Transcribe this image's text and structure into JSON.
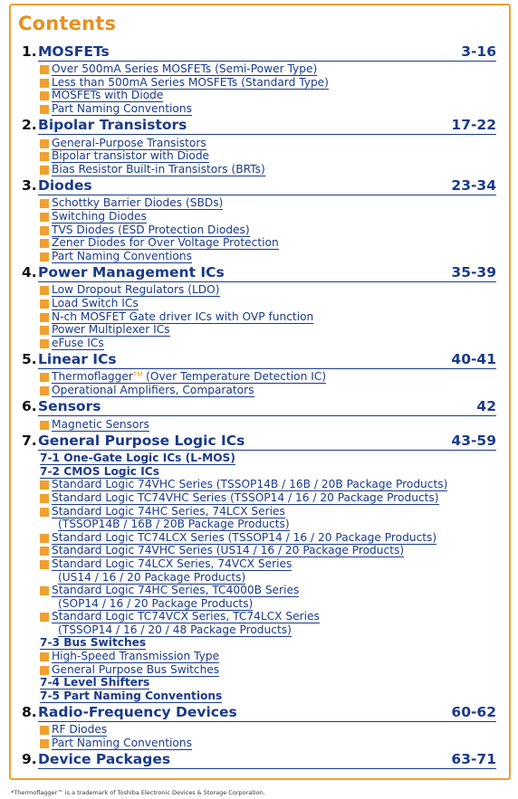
{
  "title": "Contents",
  "sections": [
    {
      "num": "1.",
      "name": "MOSFETs",
      "pages": "3-16",
      "items": [
        {
          "text": "Over 500mA Series MOSFETs (Semi-Power Type)",
          "bullet": true
        },
        {
          "text": "Less than 500mA Series MOSFETs (Standard Type)",
          "bullet": true
        },
        {
          "text": "MOSFETs with Diode",
          "bullet": true
        },
        {
          "text": "Part Naming Conventions",
          "bullet": true
        }
      ]
    },
    {
      "num": "2.",
      "name": "Bipolar Transistors",
      "pages": "17-22",
      "items": [
        {
          "text": "General-Purpose Transistors",
          "bullet": true
        },
        {
          "text": "Bipolar transistor with Diode",
          "bullet": true
        },
        {
          "text": "Bias Resistor Built-in Transistors (BRTs)",
          "bullet": true
        }
      ]
    },
    {
      "num": "3.",
      "name": "Diodes",
      "pages": "23-34",
      "items": [
        {
          "text": "Schottky Barrier Diodes (SBDs)",
          "bullet": true
        },
        {
          "text": "Switching Diodes",
          "bullet": true
        },
        {
          "text": "TVS Diodes (ESD Protection Diodes)",
          "bullet": true
        },
        {
          "text": "Zener Diodes for Over Voltage Protection",
          "bullet": true
        },
        {
          "text": "Part Naming Conventions",
          "bullet": true
        }
      ]
    },
    {
      "num": "4.",
      "name": "Power Management ICs",
      "pages": "35-39",
      "items": [
        {
          "text": "Low Dropout Regulators (LDO)",
          "bullet": true
        },
        {
          "text": "Load Switch ICs",
          "bullet": true
        },
        {
          "text": "N-ch MOSFET Gate driver ICs with OVP function",
          "bullet": true
        },
        {
          "text": "Power Multiplexer ICs",
          "bullet": true
        },
        {
          "text": "eFuse ICs",
          "bullet": true
        }
      ]
    },
    {
      "num": "5.",
      "name": "Linear ICs",
      "pages": "40-41",
      "items": [
        {
          "text": "Thermoflagger",
          "tm": "TM",
          "after": " (Over Temperature Detection IC)",
          "bullet": true
        },
        {
          "text": "Operational Amplifiers, Comparators",
          "bullet": true
        }
      ]
    },
    {
      "num": "6.",
      "name": "Sensors",
      "pages": "42",
      "items": [
        {
          "text": "Magnetic Sensors",
          "bullet": true
        }
      ]
    },
    {
      "num": "7.",
      "name": "General Purpose Logic ICs",
      "pages": "43-59",
      "items": [
        {
          "text": "7-1 One-Gate Logic ICs (L-MOS)",
          "sub": true
        },
        {
          "text": "7-2 CMOS Logic ICs",
          "sub": true
        },
        {
          "text": "Standard Logic 74VHC Series (TSSOP14B / 16B / 20B Package Products)",
          "bullet": true
        },
        {
          "text": "Standard Logic TC74VHC Series (TSSOP14 / 16 / 20 Package Products)",
          "bullet": true
        },
        {
          "text": "Standard Logic 74HC Series, 74LCX Series",
          "bullet": true
        },
        {
          "text": "(TSSOP14B / 16B / 20B Package Products)",
          "cont": true
        },
        {
          "text": "Standard Logic TC74LCX Series (TSSOP14 / 16 / 20 Package Products)",
          "bullet": true
        },
        {
          "text": "Standard Logic 74VHC Series (US14 / 16 / 20 Package Products)",
          "bullet": true
        },
        {
          "text": "Standard Logic 74LCX Series, 74VCX Series",
          "bullet": true
        },
        {
          "text": "(US14 / 16 / 20 Package Products)",
          "cont": true
        },
        {
          "text": "Standard Logic 74HC Series, TC4000B Series",
          "bullet": true
        },
        {
          "text": "(SOP14 / 16 / 20 Package Products)",
          "cont": true
        },
        {
          "text": "Standard Logic TC74VCX Series, TC74LCX Series",
          "bullet": true
        },
        {
          "text": "(TSSOP14 / 16 / 20 / 48 Package Products)",
          "cont": true
        },
        {
          "text": "7-3 Bus Switches",
          "sub": true
        },
        {
          "text": "High-Speed Transmission Type",
          "bullet": true
        },
        {
          "text": "General Purpose Bus Switches",
          "bullet": true
        },
        {
          "text": "7-4 Level Shifters",
          "sub": true
        },
        {
          "text": "7-5 Part Naming Conventions",
          "sub": true
        }
      ]
    },
    {
      "num": "8.",
      "name": "Radio-Frequency Devices",
      "pages": "60-62",
      "items": [
        {
          "text": "RF Diodes",
          "bullet": true
        },
        {
          "text": "Part Naming Conventions",
          "bullet": true
        }
      ]
    },
    {
      "num": "9.",
      "name": "Device Packages",
      "pages": "63-71",
      "items": []
    }
  ],
  "footnote": "*Thermoflagger™ is a trademark of Toshiba Electronic Devices & Storage Corporation.",
  "colors": {
    "accent": "#f0a030",
    "link": "#1a3a8a",
    "title": "#e8901e"
  }
}
